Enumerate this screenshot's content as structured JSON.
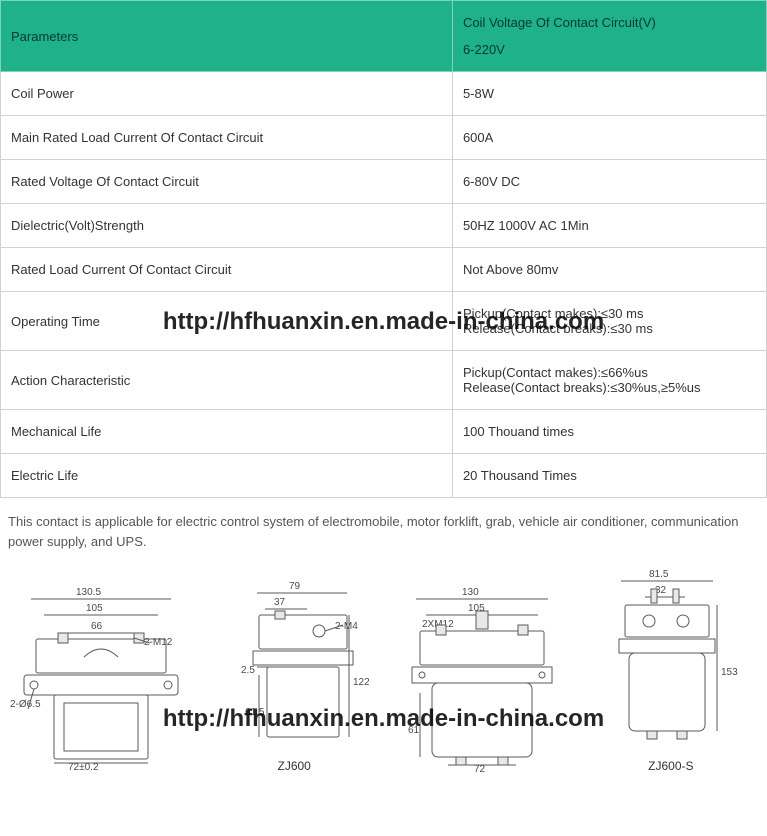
{
  "header": {
    "param_label": "Parameters",
    "value_label_top": "Coil Voltage Of Contact Circuit(V)",
    "value_label_sub": "6-220V"
  },
  "rows": [
    {
      "param": "Coil Power",
      "value": "5-8W"
    },
    {
      "param": "Main Rated Load Current Of Contact Circuit",
      "value": "600A"
    },
    {
      "param": "Rated Voltage Of Contact Circuit",
      "value": "6-80V DC"
    },
    {
      "param": "Dielectric(Volt)Strength",
      "value": "50HZ 1000V AC 1Min"
    },
    {
      "param": "Rated Load Current Of Contact Circuit",
      "value": "Not Above 80mv"
    },
    {
      "param": "Operating Time",
      "value": "Pickup(Contact makes):≤30 ms\nRelease(Contact breaks):≤30 ms"
    },
    {
      "param": "Action Characteristic",
      "value": "Pickup(Contact makes):≤66%us\nRelease(Contact breaks):≤30%us,≥5%us"
    },
    {
      "param": "Mechanical Life",
      "value": "100 Thouand times"
    },
    {
      "param": "Electric Life",
      "value": "20 Thousand Times"
    }
  ],
  "description": "This contact is applicable for electric control system of electromobile, motor forklift, grab, vehicle air conditioner, communication power supply, and UPS.",
  "watermark": "http://hfhuanxin.en.made-in-china.com",
  "diagrams": {
    "d1": {
      "dims": {
        "a": "130.5",
        "b": "105",
        "c": "66",
        "d": "2-M12",
        "e": "2-Ø6.5",
        "f": "72±0.2"
      }
    },
    "d2": {
      "caption": "ZJ600",
      "dims": {
        "a": "79",
        "b": "37",
        "c": "2-M4",
        "d": "2.5",
        "e": "61.5",
        "f": "122"
      }
    },
    "d3": {
      "dims": {
        "a": "130",
        "b": "105",
        "c": "2XM12",
        "d": "61",
        "e": "72"
      }
    },
    "d4": {
      "caption": "ZJ600-S",
      "dims": {
        "a": "81.5",
        "b": "32",
        "c": "153"
      }
    }
  },
  "colors": {
    "header_bg": "#1fb18a",
    "header_text": "#073b2b",
    "border": "#d0d0d0",
    "text": "#333333",
    "desc_text": "#555555",
    "diagram_stroke": "#5a5a5a"
  }
}
